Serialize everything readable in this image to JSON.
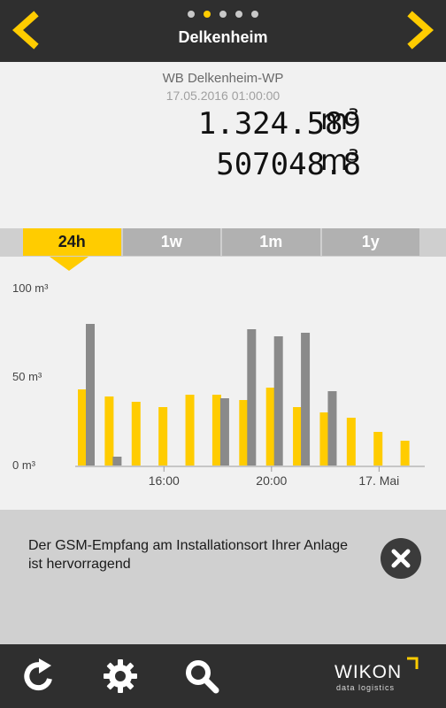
{
  "header": {
    "title": "Delkenheim",
    "dots": [
      false,
      true,
      false,
      false,
      false
    ],
    "accent": "#ffcc00"
  },
  "meter": {
    "name": "WB Delkenheim-WP",
    "timestamp": "17.05.2016 01:00:00",
    "reading_1": "1.324.589",
    "unit_1": "m³",
    "reading_2": "507048.8",
    "unit_2": "m³"
  },
  "tabs": [
    {
      "label": "24h",
      "active": true
    },
    {
      "label": "1w",
      "active": false
    },
    {
      "label": "1m",
      "active": false
    },
    {
      "label": "1y",
      "active": false
    }
  ],
  "chart_data": {
    "type": "bar",
    "colors": {
      "series_yellow": "#ffcc00",
      "series_gray": "#8a8a8a"
    },
    "y_ticks": [
      "100 m³",
      "50 m³",
      "0 m³"
    ],
    "ylim": [
      0,
      100
    ],
    "x_ticks": [
      {
        "label": "16:00",
        "at": 3.3
      },
      {
        "label": "20:00",
        "at": 7.3
      },
      {
        "label": "17. Mai",
        "at": 11.3
      }
    ],
    "slots": 13,
    "series": [
      {
        "key": "yellow",
        "values": [
          43,
          39,
          36,
          33,
          40,
          40,
          37,
          44,
          33,
          30,
          27,
          19,
          14
        ]
      },
      {
        "key": "gray",
        "values": [
          80,
          5,
          null,
          null,
          null,
          38,
          77,
          73,
          75,
          42,
          null,
          null,
          null
        ]
      }
    ],
    "grid": false
  },
  "notice": {
    "text": "Der GSM-Empfang am Installationsort Ihrer Anlage ist hervorragend"
  },
  "footer": {
    "logo_text": "WIKON",
    "logo_sub": "data logistics",
    "icons": [
      "refresh-icon",
      "settings-icon",
      "search-icon"
    ]
  }
}
